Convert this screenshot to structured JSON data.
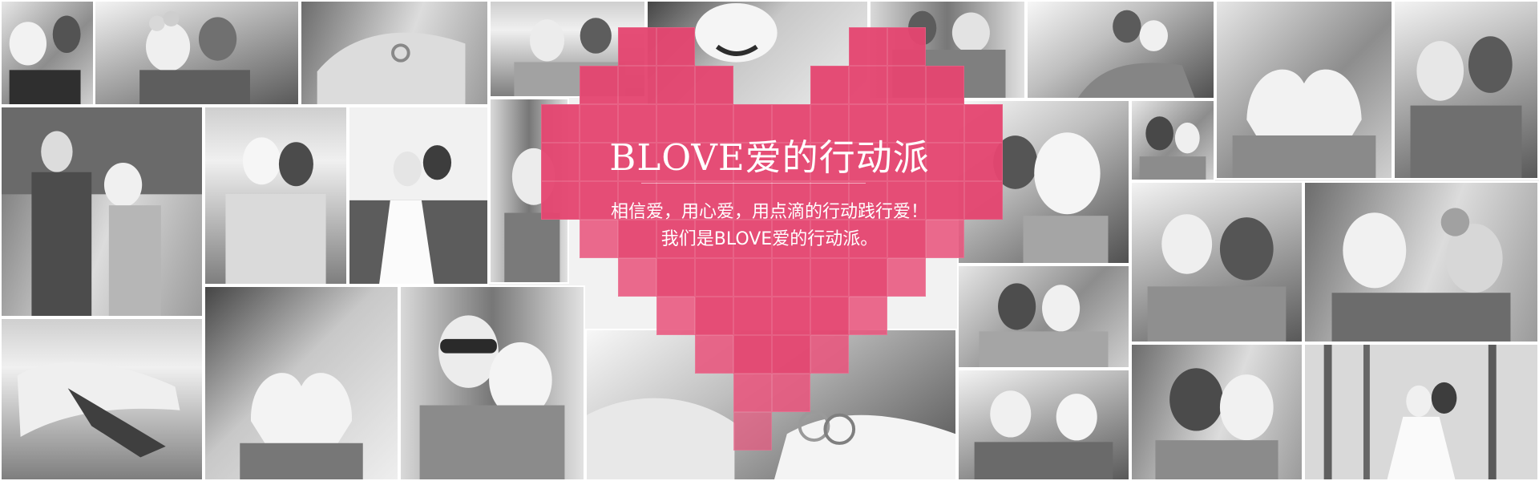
{
  "banner": {
    "headline": "BLOVE爱的行动派",
    "subtext_line_1": "相信爱，用心爱，用点滴的行动践行爱！",
    "subtext_line_2": "我们是BLOVE爱的行动派。",
    "heart_color": "#e44670",
    "background_color": "#f2f2f2",
    "photo_style": "black-and-white couple photo collage"
  }
}
